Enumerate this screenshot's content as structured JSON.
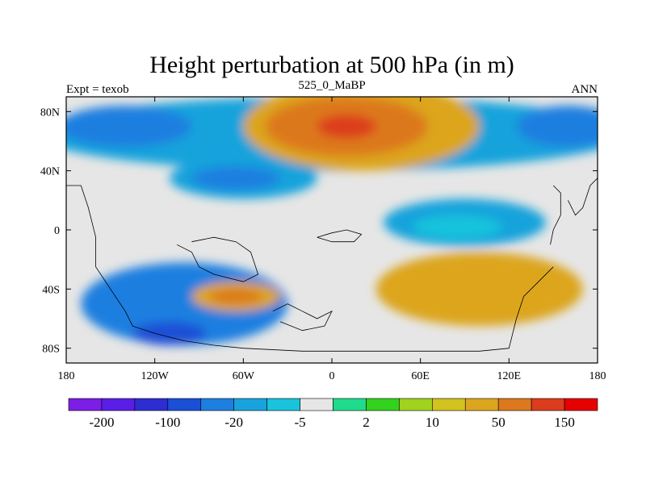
{
  "chart_data": {
    "type": "heatmap",
    "title": "Height perturbation at 500 hPa (in m)",
    "subtitle_left": "Expt = texob",
    "subtitle_center": "525_0_MaBP",
    "subtitle_right": "ANN",
    "xlim": [
      -180,
      180
    ],
    "ylim": [
      -90,
      90
    ],
    "x_ticks": [
      {
        "value": -180,
        "label": "180"
      },
      {
        "value": -120,
        "label": "120W"
      },
      {
        "value": -60,
        "label": "60W"
      },
      {
        "value": 0,
        "label": "0"
      },
      {
        "value": 60,
        "label": "60E"
      },
      {
        "value": 120,
        "label": "120E"
      },
      {
        "value": 180,
        "label": "180"
      }
    ],
    "y_ticks": [
      {
        "value": 80,
        "label": "80N"
      },
      {
        "value": 40,
        "label": "40N"
      },
      {
        "value": 0,
        "label": "0"
      },
      {
        "value": -40,
        "label": "40S"
      },
      {
        "value": -80,
        "label": "80S"
      }
    ],
    "colorbar": {
      "colors": [
        "#7d1ee6",
        "#5a1ee6",
        "#2d2dd2",
        "#1a4fd6",
        "#1e7fe0",
        "#19a3dc",
        "#19c3dc",
        "#e6e6e6",
        "#1edc8c",
        "#32d21e",
        "#a0d21e",
        "#d2c31e",
        "#dca51e",
        "#dc781e",
        "#dc3c1e",
        "#e60000"
      ],
      "tick_labels": [
        {
          "index": 1,
          "label": "-200"
        },
        {
          "index": 3,
          "label": "-100"
        },
        {
          "index": 5,
          "label": "-20"
        },
        {
          "index": 7,
          "label": "-5"
        },
        {
          "index": 9,
          "label": "2"
        },
        {
          "index": 11,
          "label": "10"
        },
        {
          "index": 13,
          "label": "50"
        },
        {
          "index": 15,
          "label": "150"
        }
      ]
    },
    "field_regions": [
      {
        "name": "nh-high-lat-ring",
        "level": 5,
        "lon": 0,
        "lat": 65,
        "rx": 200,
        "ry": 25
      },
      {
        "name": "na-low-core",
        "level": 4,
        "lon": -140,
        "lat": 70,
        "rx": 45,
        "ry": 14
      },
      {
        "name": "na-low-mid",
        "level": 5,
        "lon": -60,
        "lat": 35,
        "rx": 50,
        "ry": 14
      },
      {
        "name": "na-low-inner",
        "level": 4,
        "lon": -65,
        "lat": 35,
        "rx": 30,
        "ry": 8
      },
      {
        "name": "eurasia-high-outer",
        "level": 12,
        "lon": 20,
        "lat": 70,
        "rx": 80,
        "ry": 30
      },
      {
        "name": "eurasia-high",
        "level": 13,
        "lon": 10,
        "lat": 70,
        "rx": 55,
        "ry": 20
      },
      {
        "name": "eurasia-high-core",
        "level": 14,
        "lon": 10,
        "lat": 70,
        "rx": 20,
        "ry": 8
      },
      {
        "name": "ne-pacific-low",
        "level": 4,
        "lon": 160,
        "lat": 70,
        "rx": 35,
        "ry": 14
      },
      {
        "name": "tropical-east-low",
        "level": 5,
        "lon": 90,
        "lat": 5,
        "rx": 55,
        "ry": 16
      },
      {
        "name": "tropical-east-core",
        "level": 6,
        "lon": 85,
        "lat": 2,
        "rx": 30,
        "ry": 8
      },
      {
        "name": "indo-high-band",
        "level": 12,
        "lon": 100,
        "lat": -40,
        "rx": 70,
        "ry": 25
      },
      {
        "name": "south-pacific-low",
        "level": 4,
        "lon": -100,
        "lat": -50,
        "rx": 70,
        "ry": 28
      },
      {
        "name": "south-pacific-core",
        "level": 3,
        "lon": -110,
        "lat": -70,
        "rx": 25,
        "ry": 8
      },
      {
        "name": "south-atlantic-high",
        "level": 12,
        "lon": -65,
        "lat": -45,
        "rx": 30,
        "ry": 10
      },
      {
        "name": "south-atlantic-core",
        "level": 13,
        "lon": -65,
        "lat": -45,
        "rx": 18,
        "ry": 5
      }
    ],
    "coastline_segments": [
      {
        "name": "coast-west-edge",
        "points": [
          [
            -180,
            30
          ],
          [
            -170,
            30
          ],
          [
            -165,
            15
          ],
          [
            -160,
            -5
          ],
          [
            -160,
            -25
          ],
          [
            -150,
            -40
          ],
          [
            -140,
            -55
          ],
          [
            -135,
            -65
          ],
          [
            -120,
            -70
          ],
          [
            -100,
            -75
          ],
          [
            -80,
            -78
          ],
          [
            -60,
            -80
          ],
          [
            -20,
            -82
          ],
          [
            40,
            -82
          ],
          [
            100,
            -82
          ],
          [
            120,
            -80
          ],
          [
            125,
            -60
          ],
          [
            130,
            -45
          ],
          [
            140,
            -35
          ],
          [
            150,
            -25
          ]
        ]
      },
      {
        "name": "coast-south-atlantic",
        "points": [
          [
            -105,
            -10
          ],
          [
            -95,
            -15
          ],
          [
            -90,
            -25
          ],
          [
            -80,
            -30
          ],
          [
            -60,
            -35
          ],
          [
            -50,
            -30
          ],
          [
            -55,
            -15
          ],
          [
            -65,
            -8
          ],
          [
            -80,
            -5
          ],
          [
            -95,
            -8
          ]
        ]
      },
      {
        "name": "coast-africa",
        "points": [
          [
            -10,
            -5
          ],
          [
            0,
            -2
          ],
          [
            10,
            0
          ],
          [
            20,
            -3
          ],
          [
            15,
            -8
          ],
          [
            0,
            -8
          ],
          [
            -10,
            -5
          ]
        ]
      },
      {
        "name": "coast-antarctic-block",
        "points": [
          [
            -40,
            -55
          ],
          [
            -30,
            -50
          ],
          [
            -20,
            -55
          ],
          [
            -10,
            -60
          ],
          [
            0,
            -55
          ],
          [
            -5,
            -65
          ],
          [
            -20,
            -68
          ],
          [
            -35,
            -62
          ]
        ]
      },
      {
        "name": "coast-east-edge",
        "points": [
          [
            160,
            20
          ],
          [
            165,
            10
          ],
          [
            170,
            15
          ],
          [
            175,
            30
          ],
          [
            180,
            35
          ]
        ]
      },
      {
        "name": "coast-asia-strip",
        "points": [
          [
            150,
            30
          ],
          [
            155,
            25
          ],
          [
            155,
            10
          ],
          [
            150,
            0
          ],
          [
            148,
            -10
          ]
        ]
      }
    ]
  }
}
